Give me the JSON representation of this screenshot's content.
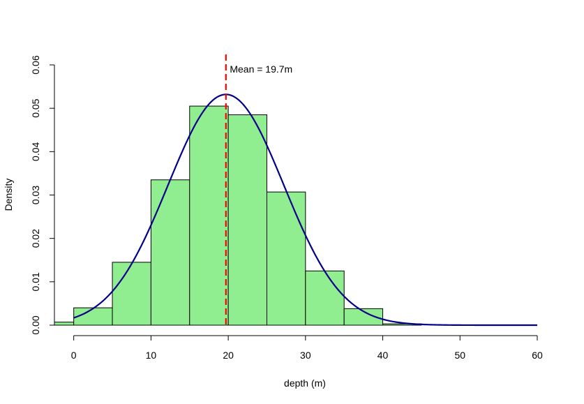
{
  "chart_data": {
    "type": "bar",
    "title": "",
    "xlabel": "depth (m)",
    "ylabel": "Density",
    "xlim": [
      -2.5,
      60
    ],
    "ylim": [
      0,
      0.06
    ],
    "x_ticks": [
      0,
      10,
      20,
      30,
      40,
      50,
      60
    ],
    "x_tick_labels": [
      "0",
      "10",
      "20",
      "30",
      "40",
      "50",
      "60"
    ],
    "y_ticks": [
      0,
      0.01,
      0.02,
      0.03,
      0.04,
      0.05,
      0.06
    ],
    "y_tick_labels": [
      "0.00",
      "0.01",
      "0.02",
      "0.03",
      "0.04",
      "0.05",
      "0.06"
    ],
    "grid": false,
    "histogram": {
      "bin_edges": [
        -5,
        0,
        5,
        10,
        15,
        20,
        25,
        30,
        35,
        40,
        45
      ],
      "density": [
        0.0007,
        0.004,
        0.0145,
        0.0335,
        0.0505,
        0.0485,
        0.0307,
        0.0125,
        0.0038,
        0.0003
      ],
      "fill_color": "#90EE90",
      "edge_color": "#000000"
    },
    "density_curve": {
      "distribution": "normal",
      "mean": 19.7,
      "sd": 7.5,
      "x_range": [
        0,
        60
      ],
      "color": "#00008B"
    },
    "mean_line": {
      "x": 19.7,
      "color": "#FF0000",
      "style": "dashed"
    },
    "annotations": [
      {
        "text": "Mean = 19.7m",
        "x": 20.2,
        "y": 0.059
      }
    ]
  }
}
